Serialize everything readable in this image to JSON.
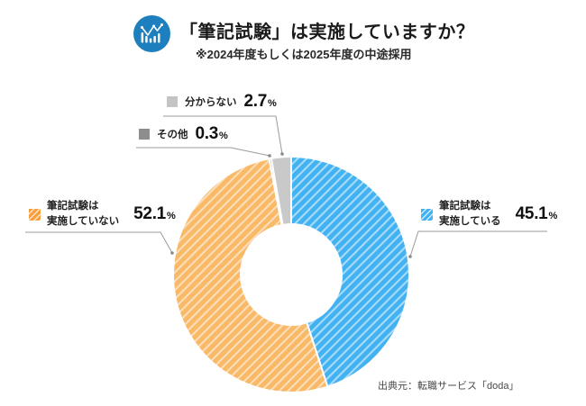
{
  "header": {
    "title": "「筆記試験」は実施していますか？",
    "subtitle": "※2024年度もしくは2025年度の中途採用",
    "icon": "combo-chart-icon"
  },
  "labels": {
    "implemented": {
      "line1": "筆記試験は",
      "line2": "実施している",
      "value": "45.1",
      "unit": "%"
    },
    "not_implemented": {
      "line1": "筆記試験は",
      "line2": "実施していない",
      "value": "52.1",
      "unit": "%"
    },
    "dont_know": {
      "text": "分からない",
      "value": "2.7",
      "unit": "%"
    },
    "other": {
      "text": "その他",
      "value": "0.3",
      "unit": "%"
    }
  },
  "footer": {
    "source": "出典元：転職サービス「doda」"
  },
  "colors": {
    "blue": "#42B2F2",
    "orange": "#F9B967",
    "light_gray": "#C9C9C9",
    "dark_gray": "#9E9E9E",
    "icon_blue": "#1E7FBF",
    "leader_line": "#9B9B9B"
  },
  "chart_data": {
    "type": "pie",
    "subtype": "donut",
    "title": "「筆記試験」は実施していますか？",
    "note": "※2024年度もしくは2025年度の中途採用",
    "unit": "%",
    "start_angle_deg": 0,
    "direction": "clockwise",
    "inner_radius_ratio": 0.43,
    "slices": [
      {
        "label": "筆記試験は実施している",
        "value": 45.1,
        "color": "#42B2F2",
        "hatch": true
      },
      {
        "label": "筆記試験は実施していない",
        "value": 52.1,
        "color": "#F9B967",
        "hatch": true
      },
      {
        "label": "その他",
        "value": 0.3,
        "color": "#9E9E9E",
        "hatch": false
      },
      {
        "label": "分からない",
        "value": 2.7,
        "color": "#C9C9C9",
        "hatch": false
      }
    ],
    "source": "出典元：転職サービス「doda」"
  }
}
